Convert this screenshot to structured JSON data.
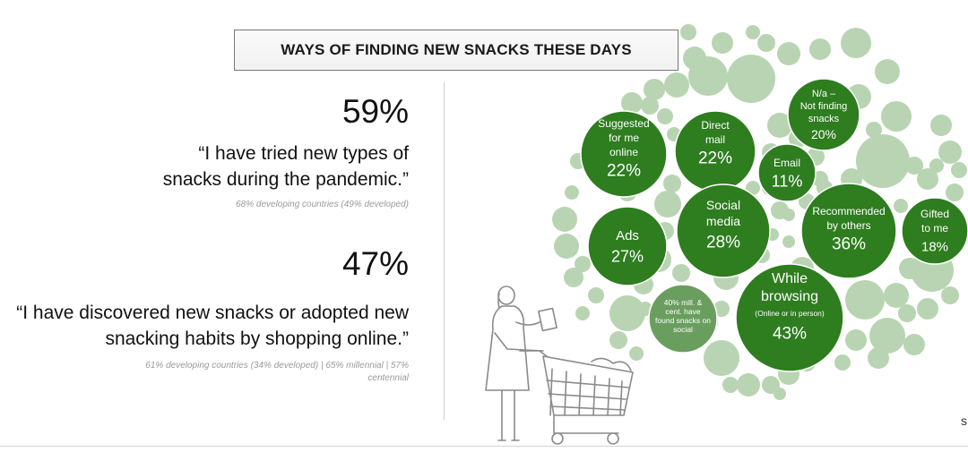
{
  "title": "WAYS OF FINDING NEW SNACKS THESE DAYS",
  "stats": [
    {
      "percent": "59%",
      "quote_lines": [
        "“I have tried new types of",
        "snacks during the pandemic.”"
      ],
      "note_lines": [
        "68% developing countries (49% developed)"
      ]
    },
    {
      "percent": "47%",
      "quote_lines": [
        "“I have discovered new snacks or adopted new",
        "snacking habits by shopping online.”"
      ],
      "note_lines": [
        "61% developing countries (34% developed) | 65% millennial | 57%",
        "centennial"
      ]
    }
  ],
  "colors": {
    "dark_green": "#2e7d1f",
    "light_green": "#b9d4b2",
    "mid_green": "#6a9e5f"
  },
  "bubbles": [
    {
      "name": "suggested-online",
      "lines": [
        "Suggested",
        "for me",
        "online"
      ],
      "pct": "22%",
      "value": 22
    },
    {
      "name": "direct-mail",
      "lines": [
        "Direct",
        "mail"
      ],
      "pct": "22%",
      "value": 22
    },
    {
      "name": "not-finding",
      "lines": [
        "N/a –",
        "Not finding",
        "snacks"
      ],
      "pct": "20%",
      "value": 20
    },
    {
      "name": "email",
      "lines": [
        "Email"
      ],
      "pct": "11%",
      "value": 11
    },
    {
      "name": "ads",
      "lines": [
        "Ads"
      ],
      "pct": "27%",
      "value": 27
    },
    {
      "name": "social-media",
      "lines": [
        "Social",
        "media"
      ],
      "pct": "28%",
      "value": 28
    },
    {
      "name": "recommended",
      "lines": [
        "Recommended",
        "by others"
      ],
      "pct": "36%",
      "value": 36
    },
    {
      "name": "gifted",
      "lines": [
        "Gifted",
        "to me"
      ],
      "pct": "18%",
      "value": 18
    },
    {
      "name": "while-browsing",
      "lines": [
        "While",
        "browsing"
      ],
      "sub": "(Online or in person)",
      "pct": "43%",
      "value": 43
    },
    {
      "name": "social-note",
      "lines": [
        "40% mill. &",
        "cent. have",
        "found snacks on",
        "social"
      ],
      "pct": "",
      "value": null
    }
  ],
  "edge_glyph": "s"
}
